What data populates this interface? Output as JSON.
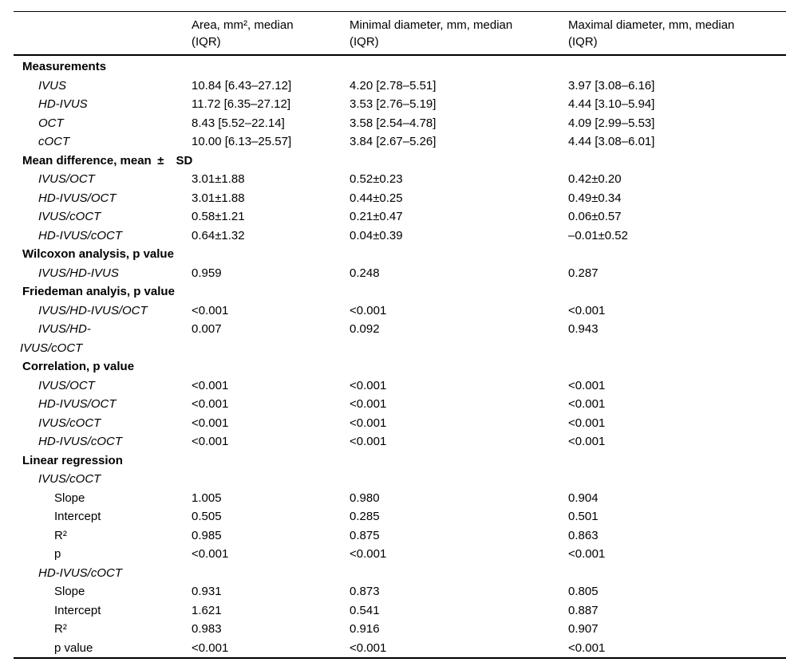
{
  "table": {
    "header": {
      "col1": "",
      "cols": [
        {
          "line1": "Area, mm², median",
          "line2": "(IQR)"
        },
        {
          "line1": "Minimal diameter, mm, median",
          "line2": "(IQR)"
        },
        {
          "line1": "Maximal diameter, mm, median",
          "line2": "(IQR)"
        }
      ]
    },
    "rows": [
      {
        "label": "Measurements",
        "values": [
          "",
          "",
          ""
        ]
      },
      {
        "label": "IVUS",
        "values": [
          "10.84 [6.43–27.12]",
          "4.20 [2.78–5.51]",
          "3.97 [3.08–6.16]"
        ]
      },
      {
        "label": "HD-IVUS",
        "values": [
          "11.72 [6.35–27.12]",
          "3.53 [2.76–5.19]",
          "4.44 [3.10–5.94]"
        ]
      },
      {
        "label": "OCT",
        "values": [
          "8.43 [5.52–22.14]",
          "3.58 [2.54–4.78]",
          "4.09 [2.99–5.53]"
        ]
      },
      {
        "label": "cOCT",
        "values": [
          "10.00 [6.13–25.57]",
          "3.84 [2.67–5.26]",
          "4.44 [3.08–6.01]"
        ]
      },
      {
        "label": "Mean difference, mean ± SD",
        "values": [
          "",
          "",
          ""
        ]
      },
      {
        "label": "IVUS/OCT",
        "values": [
          "3.01±1.88",
          "0.52±0.23",
          "0.42±0.20"
        ]
      },
      {
        "label": "HD-IVUS/OCT",
        "values": [
          "3.01±1.88",
          "0.44±0.25",
          "0.49±0.34"
        ]
      },
      {
        "label": "IVUS/cOCT",
        "values": [
          "0.58±1.21",
          "0.21±0.47",
          "0.06±0.57"
        ]
      },
      {
        "label": "HD-IVUS/cOCT",
        "values": [
          "0.64±1.32",
          "0.04±0.39",
          "–0.01±0.52"
        ]
      },
      {
        "label": "Wilcoxon analysis, p value",
        "values": [
          "",
          "",
          ""
        ]
      },
      {
        "label": "IVUS/HD-IVUS",
        "values": [
          "0.959",
          "0.248",
          "0.287"
        ]
      },
      {
        "label": "Friedeman analyis, p value",
        "values": [
          "",
          "",
          ""
        ]
      },
      {
        "label": "IVUS/HD-IVUS/OCT",
        "values": [
          "<0.001",
          "<0.001",
          "<0.001"
        ]
      },
      {
        "label": "IVUS/HD-",
        "label2": "IVUS/cOCT",
        "values": [
          "0.007",
          "0.092",
          "0.943"
        ]
      },
      {
        "label": "Correlation, p value",
        "values": [
          "",
          "",
          ""
        ]
      },
      {
        "label": "IVUS/OCT",
        "values": [
          "<0.001",
          "<0.001",
          "<0.001"
        ]
      },
      {
        "label": "HD-IVUS/OCT",
        "values": [
          "<0.001",
          "<0.001",
          "<0.001"
        ]
      },
      {
        "label": "IVUS/cOCT",
        "values": [
          "<0.001",
          "<0.001",
          "<0.001"
        ]
      },
      {
        "label": "HD-IVUS/cOCT",
        "values": [
          "<0.001",
          "<0.001",
          "<0.001"
        ]
      },
      {
        "label": "Linear regression",
        "values": [
          "",
          "",
          ""
        ]
      },
      {
        "label": "IVUS/cOCT",
        "values": [
          "",
          "",
          ""
        ]
      },
      {
        "label": "Slope",
        "values": [
          "1.005",
          "0.980",
          "0.904"
        ]
      },
      {
        "label": "Intercept",
        "values": [
          "0.505",
          "0.285",
          "0.501"
        ]
      },
      {
        "label": "R²",
        "values": [
          "0.985",
          "0.875",
          "0.863"
        ]
      },
      {
        "label": "p",
        "values": [
          "<0.001",
          "<0.001",
          "<0.001"
        ]
      },
      {
        "label": "HD-IVUS/cOCT",
        "values": [
          "",
          "",
          ""
        ]
      },
      {
        "label": "Slope",
        "values": [
          "0.931",
          "0.873",
          "0.805"
        ]
      },
      {
        "label": "Intercept",
        "values": [
          "1.621",
          "0.541",
          "0.887"
        ]
      },
      {
        "label": "R²",
        "values": [
          "0.983",
          "0.916",
          "0.907"
        ]
      },
      {
        "label": "p value",
        "values": [
          "<0.001",
          "<0.001",
          "<0.001"
        ]
      }
    ]
  }
}
